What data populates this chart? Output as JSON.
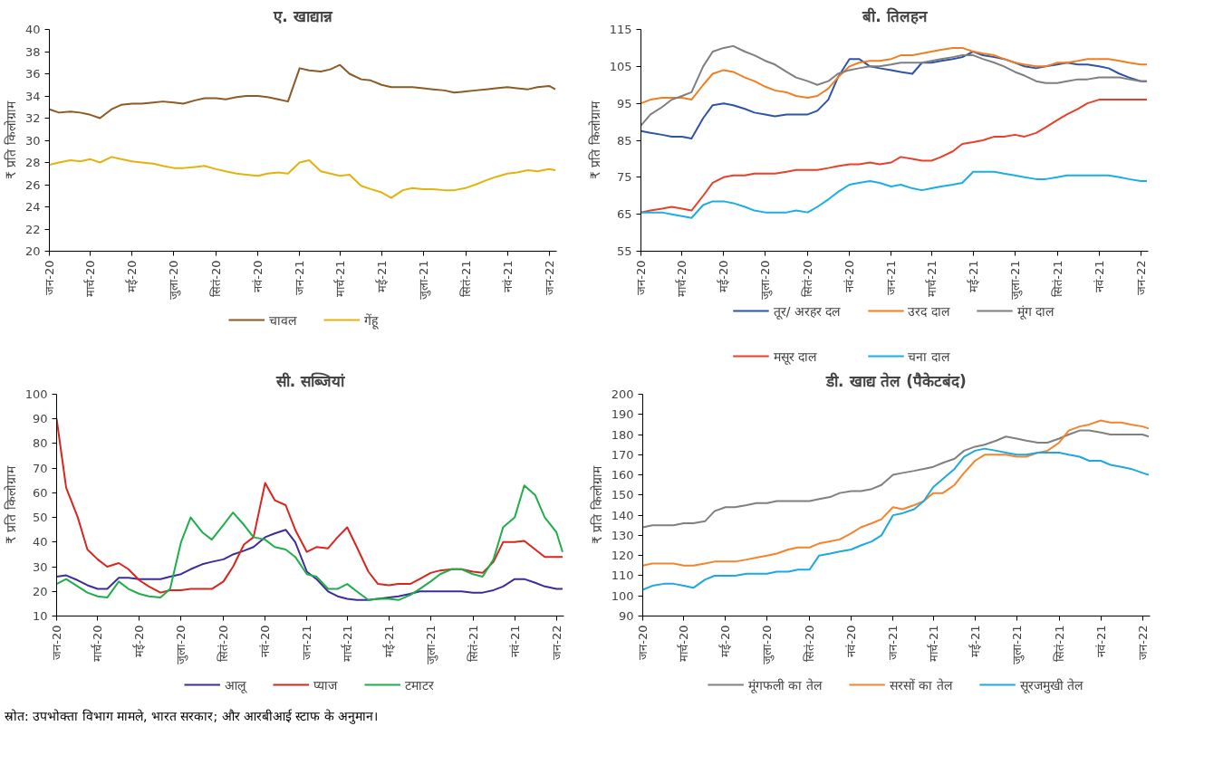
{
  "chart_data": [
    {
      "type": "line",
      "title": "ए. खाद्यान्न",
      "ylabel": "₹ प्रति किलोग्राम",
      "legend": "bottom",
      "grid": false,
      "x": [
        "2020-01-01",
        "2020-01-15",
        "2020-02-01",
        "2020-02-15",
        "2020-03-01",
        "2020-03-15",
        "2020-04-01",
        "2020-04-15",
        "2020-05-01",
        "2020-05-15",
        "2020-06-01",
        "2020-06-15",
        "2020-07-01",
        "2020-07-15",
        "2020-08-01",
        "2020-08-15",
        "2020-09-01",
        "2020-09-15",
        "2020-10-01",
        "2020-10-15",
        "2020-11-01",
        "2020-11-15",
        "2020-12-01",
        "2020-12-15",
        "2021-01-01",
        "2021-01-15",
        "2021-02-01",
        "2021-02-15",
        "2021-03-01",
        "2021-03-15",
        "2021-04-01",
        "2021-04-15",
        "2021-05-01",
        "2021-05-15",
        "2021-06-01",
        "2021-06-15",
        "2021-07-01",
        "2021-07-15",
        "2021-08-01",
        "2021-08-15",
        "2021-09-01",
        "2021-09-15",
        "2021-10-01",
        "2021-10-15",
        "2021-11-01",
        "2021-11-15",
        "2021-12-01",
        "2021-12-15",
        "2022-01-01",
        "2022-01-10"
      ],
      "xlim": [
        "2020-01-01",
        "2022-01-12"
      ],
      "xticks": [
        {
          "value": "2020-01-01",
          "label": "जन-20"
        },
        {
          "value": "2020-03-01",
          "label": "मार्च-20"
        },
        {
          "value": "2020-05-01",
          "label": "मई-20"
        },
        {
          "value": "2020-07-01",
          "label": "जुला-20"
        },
        {
          "value": "2020-09-01",
          "label": "सितं-20"
        },
        {
          "value": "2020-11-01",
          "label": "नवं-20"
        },
        {
          "value": "2021-01-01",
          "label": "जन-21"
        },
        {
          "value": "2021-03-01",
          "label": "मार्च-21"
        },
        {
          "value": "2021-05-01",
          "label": "मई-21"
        },
        {
          "value": "2021-07-01",
          "label": "जुला-21"
        },
        {
          "value": "2021-09-01",
          "label": "सितं-21"
        },
        {
          "value": "2021-11-01",
          "label": "नवं-21"
        },
        {
          "value": "2022-01-01",
          "label": "जन-22"
        }
      ],
      "ylim": [
        20,
        40
      ],
      "yticks": [
        20,
        22,
        24,
        26,
        28,
        30,
        32,
        34,
        36,
        38,
        40
      ],
      "series": [
        {
          "name": "चावल",
          "color": "#8c5a24",
          "values": [
            32.8,
            32.5,
            32.6,
            32.5,
            32.3,
            32.0,
            32.8,
            33.2,
            33.3,
            33.3,
            33.4,
            33.5,
            33.4,
            33.3,
            33.6,
            33.8,
            33.8,
            33.7,
            33.9,
            34.0,
            34.0,
            33.9,
            33.7,
            33.5,
            36.5,
            36.3,
            36.2,
            36.4,
            36.8,
            36.0,
            35.5,
            35.4,
            35.0,
            34.8,
            34.8,
            34.8,
            34.7,
            34.6,
            34.5,
            34.3,
            34.4,
            34.5,
            34.6,
            34.7,
            34.8,
            34.7,
            34.6,
            34.8,
            34.9,
            34.6
          ]
        },
        {
          "name": "गेंहू",
          "color": "#e3b30c",
          "values": [
            27.8,
            28.0,
            28.2,
            28.1,
            28.3,
            28.0,
            28.5,
            28.3,
            28.1,
            28.0,
            27.9,
            27.7,
            27.5,
            27.5,
            27.6,
            27.7,
            27.4,
            27.2,
            27.0,
            26.9,
            26.8,
            27.0,
            27.1,
            27.0,
            28.0,
            28.2,
            27.2,
            27.0,
            26.8,
            26.9,
            25.9,
            25.6,
            25.3,
            24.8,
            25.5,
            25.7,
            25.6,
            25.6,
            25.5,
            25.5,
            25.7,
            26.0,
            26.4,
            26.7,
            27.0,
            27.1,
            27.3,
            27.2,
            27.4,
            27.3
          ]
        }
      ]
    },
    {
      "type": "line",
      "title": "बी. तिलहन",
      "ylabel": "₹ प्रति किलोग्राम",
      "legend": "bottom",
      "grid": false,
      "x": [
        "2020-01-01",
        "2020-01-15",
        "2020-02-01",
        "2020-02-15",
        "2020-03-01",
        "2020-03-15",
        "2020-04-01",
        "2020-04-15",
        "2020-05-01",
        "2020-05-15",
        "2020-06-01",
        "2020-06-15",
        "2020-07-01",
        "2020-07-15",
        "2020-08-01",
        "2020-08-15",
        "2020-09-01",
        "2020-09-15",
        "2020-10-01",
        "2020-10-15",
        "2020-11-01",
        "2020-11-15",
        "2020-12-01",
        "2020-12-15",
        "2021-01-01",
        "2021-01-15",
        "2021-02-01",
        "2021-02-15",
        "2021-03-01",
        "2021-03-15",
        "2021-04-01",
        "2021-04-15",
        "2021-05-01",
        "2021-05-15",
        "2021-06-01",
        "2021-06-15",
        "2021-07-01",
        "2021-07-15",
        "2021-08-01",
        "2021-08-15",
        "2021-09-01",
        "2021-09-15",
        "2021-10-01",
        "2021-10-15",
        "2021-11-01",
        "2021-11-15",
        "2021-12-01",
        "2021-12-15",
        "2022-01-01",
        "2022-01-10"
      ],
      "xlim": [
        "2020-01-01",
        "2022-01-12"
      ],
      "xticks": [
        {
          "value": "2020-01-01",
          "label": "जन-20"
        },
        {
          "value": "2020-03-01",
          "label": "मार्च-20"
        },
        {
          "value": "2020-05-01",
          "label": "मई-20"
        },
        {
          "value": "2020-07-01",
          "label": "जुला-20"
        },
        {
          "value": "2020-09-01",
          "label": "सितं-20"
        },
        {
          "value": "2020-11-01",
          "label": "नवं-20"
        },
        {
          "value": "2021-01-01",
          "label": "जन-21"
        },
        {
          "value": "2021-03-01",
          "label": "मार्च-21"
        },
        {
          "value": "2021-05-01",
          "label": "मई-21"
        },
        {
          "value": "2021-07-01",
          "label": "जुला-21"
        },
        {
          "value": "2021-09-01",
          "label": "सितं-21"
        },
        {
          "value": "2021-11-01",
          "label": "नवं-21"
        },
        {
          "value": "2022-01-01",
          "label": "जन-22"
        }
      ],
      "ylim": [
        55,
        115
      ],
      "yticks": [
        55,
        65,
        75,
        85,
        95,
        105,
        115
      ],
      "series": [
        {
          "name": "तूर/ अरहर दल",
          "color": "#2e54a8",
          "values": [
            87.5,
            87,
            86.5,
            86,
            86,
            85.5,
            91,
            94.5,
            95,
            94.5,
            93.5,
            92.5,
            92,
            91.5,
            92,
            92,
            92,
            93,
            96,
            102,
            107,
            107,
            105,
            104.5,
            104,
            103.5,
            103,
            106,
            106,
            106.5,
            107,
            107.5,
            109,
            108,
            107.5,
            107,
            106,
            105,
            104.5,
            105,
            105.5,
            106,
            105.5,
            105.5,
            105,
            104.5,
            103,
            102,
            101,
            101
          ]
        },
        {
          "name": "उरद दाल",
          "color": "#f07f22",
          "values": [
            95,
            96,
            96.5,
            96.5,
            96.5,
            96,
            100,
            103,
            104,
            103.5,
            102,
            101,
            99.5,
            98.5,
            98,
            97,
            96.5,
            97,
            99,
            102,
            105,
            106,
            106.5,
            106.5,
            107,
            108,
            108,
            108.5,
            109,
            109.5,
            110,
            110,
            109,
            108.5,
            108,
            107,
            106,
            105.5,
            105,
            105,
            106,
            106,
            106.5,
            107,
            107,
            107,
            106.5,
            106,
            105.5,
            105.5
          ]
        },
        {
          "name": "मूंग दाल",
          "color": "#7f7f7f",
          "values": [
            89,
            92,
            94,
            96,
            97,
            98,
            105,
            109,
            110,
            110.5,
            109,
            108,
            106.5,
            105.5,
            103.5,
            102,
            101,
            100,
            101,
            103,
            104,
            104.5,
            105,
            105,
            105.5,
            106,
            106,
            106,
            106.5,
            107,
            107.5,
            108,
            108,
            107,
            106,
            105,
            103.5,
            102.5,
            101,
            100.5,
            100.5,
            101,
            101.5,
            101.5,
            102,
            102,
            102,
            101.5,
            101,
            101
          ]
        },
        {
          "name": "मसूर दाल",
          "color": "#e8412a",
          "values": [
            65.5,
            66,
            66.5,
            67,
            66.5,
            66,
            70,
            73.5,
            75,
            75.5,
            75.5,
            76,
            76,
            76,
            76.5,
            77,
            77,
            77,
            77.5,
            78,
            78.5,
            78.5,
            79,
            78.5,
            79,
            80.5,
            80,
            79.5,
            79.5,
            80.5,
            82,
            84,
            84.5,
            85,
            86,
            86,
            86.5,
            86,
            87,
            88.5,
            90.5,
            92,
            93.5,
            95,
            96,
            96,
            96,
            96,
            96,
            96
          ]
        },
        {
          "name": "चना दाल",
          "color": "#1aaee8",
          "values": [
            65.5,
            65.5,
            65.5,
            65,
            64.5,
            64,
            67.5,
            68.5,
            68.5,
            68,
            67,
            66,
            65.5,
            65.5,
            65.5,
            66,
            65.5,
            67,
            69,
            71,
            73,
            73.5,
            74,
            73.5,
            72.5,
            73,
            72,
            71.5,
            72,
            72.5,
            73,
            73.5,
            76.5,
            76.5,
            76.5,
            76,
            75.5,
            75,
            74.5,
            74.5,
            75,
            75.5,
            75.5,
            75.5,
            75.5,
            75.5,
            75,
            74.5,
            74,
            74
          ]
        }
      ]
    },
    {
      "type": "line",
      "title": "सी. सब्जियां",
      "ylabel": "₹ प्रति किलोग्राम",
      "legend": "bottom",
      "grid": false,
      "x": [
        "2020-01-01",
        "2020-01-15",
        "2020-02-01",
        "2020-02-15",
        "2020-03-01",
        "2020-03-15",
        "2020-04-01",
        "2020-04-15",
        "2020-05-01",
        "2020-05-15",
        "2020-06-01",
        "2020-06-15",
        "2020-07-01",
        "2020-07-15",
        "2020-08-01",
        "2020-08-15",
        "2020-09-01",
        "2020-09-15",
        "2020-10-01",
        "2020-10-15",
        "2020-11-01",
        "2020-11-15",
        "2020-12-01",
        "2020-12-15",
        "2021-01-01",
        "2021-01-15",
        "2021-02-01",
        "2021-02-15",
        "2021-03-01",
        "2021-03-15",
        "2021-04-01",
        "2021-04-15",
        "2021-05-01",
        "2021-05-15",
        "2021-06-01",
        "2021-06-15",
        "2021-07-01",
        "2021-07-15",
        "2021-08-01",
        "2021-08-15",
        "2021-09-01",
        "2021-09-15",
        "2021-10-01",
        "2021-10-15",
        "2021-11-01",
        "2021-11-15",
        "2021-12-01",
        "2021-12-15",
        "2022-01-01",
        "2022-01-10"
      ],
      "xlim": [
        "2020-01-01",
        "2022-01-12"
      ],
      "xticks": [
        {
          "value": "2020-01-01",
          "label": "जन-20"
        },
        {
          "value": "2020-03-01",
          "label": "मार्च-20"
        },
        {
          "value": "2020-05-01",
          "label": "मई-20"
        },
        {
          "value": "2020-07-01",
          "label": "जुला-20"
        },
        {
          "value": "2020-09-01",
          "label": "सितं-20"
        },
        {
          "value": "2020-11-01",
          "label": "नवं-20"
        },
        {
          "value": "2021-01-01",
          "label": "जन-21"
        },
        {
          "value": "2021-03-01",
          "label": "मार्च-21"
        },
        {
          "value": "2021-05-01",
          "label": "मई-21"
        },
        {
          "value": "2021-07-01",
          "label": "जुला-21"
        },
        {
          "value": "2021-09-01",
          "label": "सितं-21"
        },
        {
          "value": "2021-11-01",
          "label": "नवं-21"
        },
        {
          "value": "2022-01-01",
          "label": "जन-22"
        }
      ],
      "ylim": [
        10,
        100
      ],
      "yticks": [
        10,
        20,
        30,
        40,
        50,
        60,
        70,
        80,
        90,
        100
      ],
      "series": [
        {
          "name": "आलू",
          "color": "#3b2e9c",
          "values": [
            26,
            26.5,
            24.5,
            22.5,
            21,
            21,
            25.5,
            25.5,
            25,
            25,
            25,
            26,
            27,
            29,
            31,
            32,
            33,
            35,
            36.5,
            38,
            42,
            43.5,
            45,
            40,
            28,
            25,
            20,
            18,
            17,
            16.5,
            16.5,
            17,
            17.5,
            18,
            19,
            20,
            20,
            20,
            20,
            20,
            19.5,
            19.5,
            20.5,
            22,
            25,
            25,
            23.5,
            22,
            21,
            21
          ]
        },
        {
          "name": "प्याज",
          "color": "#d7261f",
          "values": [
            90,
            62,
            50,
            37,
            33,
            30,
            31.5,
            29,
            24.5,
            22,
            19.5,
            20.5,
            20.5,
            21,
            21,
            21,
            24,
            30,
            39,
            42,
            64,
            57,
            55,
            45,
            36,
            38,
            37.5,
            42,
            46,
            38,
            28,
            23,
            22.5,
            23,
            23,
            25,
            27.5,
            28.5,
            29,
            29,
            28,
            27.5,
            32,
            40,
            40,
            40.5,
            37,
            34,
            34,
            34
          ]
        },
        {
          "name": "टमाटर",
          "color": "#1fae4a",
          "values": [
            23,
            25,
            22,
            19.5,
            18,
            17.5,
            24,
            21,
            19,
            18,
            17.5,
            21,
            40,
            50,
            44,
            41,
            47,
            52,
            47,
            42,
            41,
            38,
            37,
            34,
            27,
            26,
            21,
            21,
            23,
            20,
            16.5,
            17,
            17,
            16.5,
            18.5,
            21,
            24,
            27,
            29,
            29,
            27,
            26,
            33,
            46,
            50,
            63,
            59,
            50,
            44,
            36
          ]
        }
      ]
    },
    {
      "type": "line",
      "title": "डी. खाद्य तेल (पैकेटबंद)",
      "ylabel": "₹ प्रति किलोग्राम",
      "legend": "bottom",
      "grid": false,
      "annotations": [
        "स्रोत: उपभोक्ता विभाग मामले, भारत सरकार; और आरबीआई स्टाफ के अनुमान।"
      ],
      "x": [
        "2020-01-01",
        "2020-01-15",
        "2020-02-01",
        "2020-02-15",
        "2020-03-01",
        "2020-03-15",
        "2020-04-01",
        "2020-04-15",
        "2020-05-01",
        "2020-05-15",
        "2020-06-01",
        "2020-06-15",
        "2020-07-01",
        "2020-07-15",
        "2020-08-01",
        "2020-08-15",
        "2020-09-01",
        "2020-09-15",
        "2020-10-01",
        "2020-10-15",
        "2020-11-01",
        "2020-11-15",
        "2020-12-01",
        "2020-12-15",
        "2021-01-01",
        "2021-01-15",
        "2021-02-01",
        "2021-02-15",
        "2021-03-01",
        "2021-03-15",
        "2021-04-01",
        "2021-04-15",
        "2021-05-01",
        "2021-05-15",
        "2021-06-01",
        "2021-06-15",
        "2021-07-01",
        "2021-07-15",
        "2021-08-01",
        "2021-08-15",
        "2021-09-01",
        "2021-09-15",
        "2021-10-01",
        "2021-10-15",
        "2021-11-01",
        "2021-11-15",
        "2021-12-01",
        "2021-12-15",
        "2022-01-01",
        "2022-01-10"
      ],
      "xlim": [
        "2020-01-01",
        "2022-01-12"
      ],
      "xticks": [
        {
          "value": "2020-01-01",
          "label": "जन-20"
        },
        {
          "value": "2020-03-01",
          "label": "मार्च-20"
        },
        {
          "value": "2020-05-01",
          "label": "मई-20"
        },
        {
          "value": "2020-07-01",
          "label": "जुला-20"
        },
        {
          "value": "2020-09-01",
          "label": "सितं-20"
        },
        {
          "value": "2020-11-01",
          "label": "नवं-20"
        },
        {
          "value": "2021-01-01",
          "label": "जन-21"
        },
        {
          "value": "2021-03-01",
          "label": "मार्च-21"
        },
        {
          "value": "2021-05-01",
          "label": "मई-21"
        },
        {
          "value": "2021-07-01",
          "label": "जुला-21"
        },
        {
          "value": "2021-09-01",
          "label": "सितं-21"
        },
        {
          "value": "2021-11-01",
          "label": "नवं-21"
        },
        {
          "value": "2022-01-01",
          "label": "जन-22"
        }
      ],
      "ylim": [
        90,
        200
      ],
      "yticks": [
        90,
        100,
        110,
        120,
        130,
        140,
        150,
        160,
        170,
        180,
        190,
        200
      ],
      "series": [
        {
          "name": "मूंगफली का तेल",
          "color": "#808080",
          "values": [
            134,
            135,
            135,
            135,
            136,
            136,
            137,
            142,
            144,
            144,
            145,
            146,
            146,
            147,
            147,
            147,
            147,
            148,
            149,
            151,
            152,
            152,
            153,
            155,
            160,
            161,
            162,
            163,
            164,
            166,
            168,
            172,
            174,
            175,
            177,
            179,
            178,
            177,
            176,
            176,
            178,
            180,
            182,
            182,
            181,
            180,
            180,
            180,
            180,
            179
          ]
        },
        {
          "name": "सरसों का तेल",
          "color": "#f4842c",
          "values": [
            115,
            116,
            116,
            116,
            115,
            115,
            116,
            117,
            117,
            117,
            118,
            119,
            120,
            121,
            123,
            124,
            124,
            126,
            127,
            128,
            131,
            134,
            136,
            138,
            144,
            143,
            145,
            147,
            151,
            151,
            155,
            161,
            167,
            170,
            170,
            170,
            169,
            169,
            171,
            172,
            176,
            182,
            184,
            185,
            187,
            186,
            186,
            185,
            184,
            183
          ]
        },
        {
          "name": "सूरजमुखी तेल",
          "color": "#1ea8e0",
          "values": [
            103,
            105,
            106,
            106,
            105,
            104,
            108,
            110,
            110,
            110,
            111,
            111,
            111,
            112,
            112,
            113,
            113,
            120,
            121,
            122,
            123,
            125,
            127,
            130,
            140,
            141,
            143,
            147,
            154,
            158,
            163,
            169,
            172,
            173,
            172,
            171,
            170,
            170,
            171,
            171,
            171,
            170,
            169,
            167,
            167,
            165,
            164,
            163,
            161,
            160
          ]
        }
      ]
    }
  ]
}
